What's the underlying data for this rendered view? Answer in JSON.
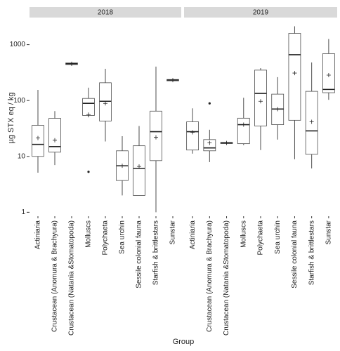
{
  "chart_data": {
    "type": "boxplot",
    "y_label": "µg STX eq / kg",
    "x_label": "Group",
    "log_scale": true,
    "grid": false,
    "color": "#4d4d4d",
    "ylim": [
      0.85,
      2800
    ],
    "yticks": [
      1,
      10,
      100,
      1000
    ],
    "facets": [
      {
        "label": "2018",
        "categories": [
          "Actiniaria",
          "Crustacean (Anomura & Brachyura)",
          "Crustacean (Natania &Stomatopoda)",
          "Molluscs",
          "Polychaeta",
          "Sea urchin",
          "Sessile colonial fauna",
          "Starfish & brittlestars",
          "Sunstar"
        ],
        "boxes": [
          {
            "min": 5.1,
            "q1": 10,
            "median": 16.4,
            "q3": 36,
            "max": 155,
            "mean": 21.3
          },
          {
            "min": 7,
            "q1": 11.9,
            "median": 15,
            "q3": 48,
            "max": 64.6,
            "mean": 19.5
          },
          {
            "min": 420,
            "q1": 440,
            "median": 455,
            "q3": 470,
            "max": 480,
            "mean": 455
          },
          {
            "min": 50,
            "q1": 54,
            "median": 89,
            "q3": 109,
            "max": 170,
            "mean": 56,
            "outliers": [
              5.3
            ]
          },
          {
            "min": 18.5,
            "q1": 43,
            "median": 97,
            "q3": 208,
            "max": 370,
            "mean": 89
          },
          {
            "min": 2,
            "q1": 3.7,
            "median": 6.8,
            "q3": 12.6,
            "max": 23,
            "mean": 6.8
          },
          {
            "min": 2,
            "q1": 2,
            "median": 6.1,
            "q3": 15.5,
            "max": 35,
            "mean": 6.6
          },
          {
            "min": 1,
            "q1": 8.4,
            "median": 27.7,
            "q3": 64.6,
            "max": 405,
            "mean": 21.9
          },
          {
            "min": 220,
            "q1": 225,
            "median": 232,
            "q3": 238,
            "max": 240,
            "mean": 232
          }
        ]
      },
      {
        "label": "2019",
        "categories": [
          "Actiniaria",
          "Crustacean (Anomura & Brachyura)",
          "Crustacean (Natania &Stomatopoda)",
          "Molluscs",
          "Polychaeta",
          "Sea urchin",
          "Sessile colonial fauna",
          "Starfish & brittlestars",
          "Sunstar"
        ],
        "boxes": [
          {
            "min": 11.2,
            "q1": 13,
            "median": 27.7,
            "q3": 41.6,
            "max": 72.5,
            "mean": 27
          },
          {
            "min": 7.9,
            "q1": 12.6,
            "median": 14.2,
            "q3": 20,
            "max": 30,
            "mean": 17.4,
            "outliers": [
              89
            ]
          },
          {
            "min": 16.5,
            "q1": 17,
            "median": 17.4,
            "q3": 17.8,
            "max": 18.2,
            "mean": 17.4
          },
          {
            "min": 15.9,
            "q1": 16.9,
            "median": 37,
            "q3": 48.3,
            "max": 112,
            "mean": 37
          },
          {
            "min": 13,
            "q1": 35,
            "median": 134,
            "q3": 350,
            "max": 380,
            "mean": 97
          },
          {
            "min": 20,
            "q1": 37,
            "median": 70.5,
            "q3": 130,
            "max": 262,
            "mean": 70
          },
          {
            "min": 8.9,
            "q1": 44.3,
            "median": 660,
            "q3": 1590,
            "max": 2130,
            "mean": 310
          },
          {
            "min": 6.1,
            "q1": 10.9,
            "median": 28.6,
            "q3": 146,
            "max": 480,
            "mean": 41.6
          },
          {
            "min": 103,
            "q1": 138,
            "median": 158,
            "q3": 690,
            "max": 1260,
            "mean": 285
          }
        ]
      }
    ]
  }
}
